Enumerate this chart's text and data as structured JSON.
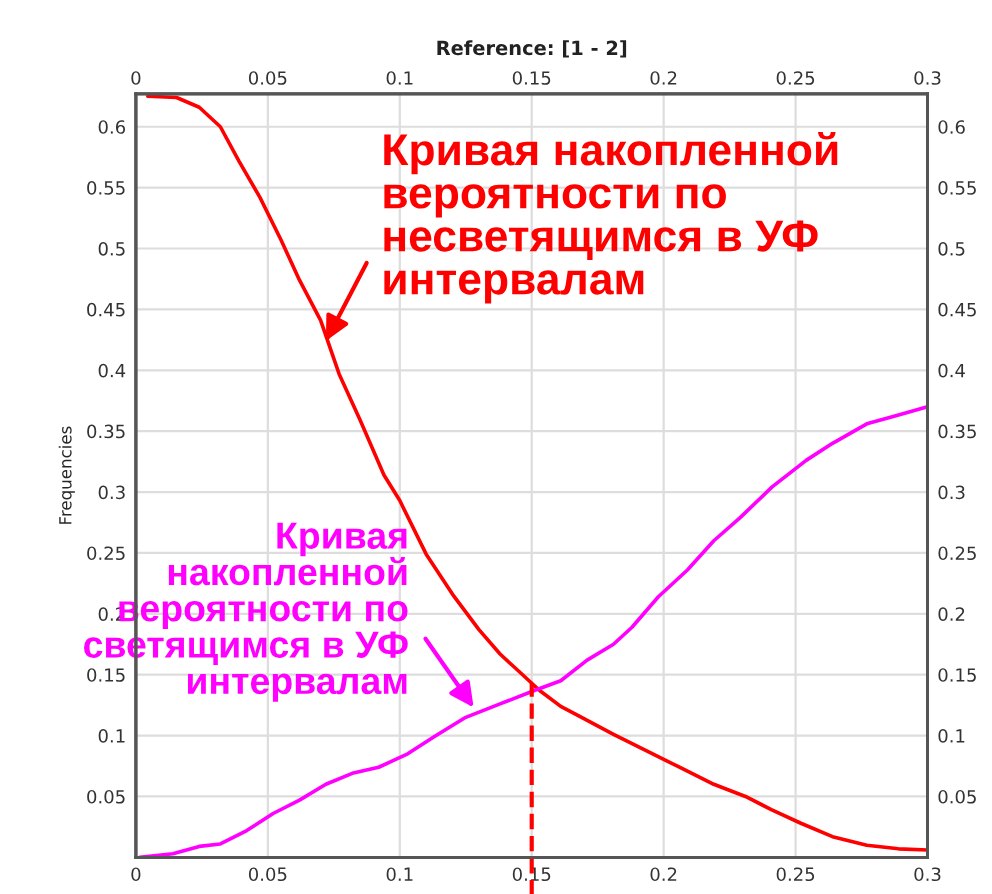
{
  "chart_data": {
    "type": "line",
    "title": "Reference: [1 - 2]",
    "ylabel": "Frequencies",
    "series": [
      {
        "color": "#ff0000",
        "x": [
          0.0045,
          0.0154,
          0.024,
          0.032,
          0.039,
          0.047,
          0.055,
          0.062,
          0.07,
          0.077,
          0.085,
          0.094,
          0.1,
          0.11,
          0.12,
          0.13,
          0.138,
          0.145,
          0.153,
          0.161,
          0.168,
          0.181,
          0.193,
          0.206,
          0.219,
          0.231,
          0.241,
          0.252,
          0.264,
          0.277,
          0.289,
          0.3
        ],
        "values": [
          0.625,
          0.624,
          0.616,
          0.6,
          0.572,
          0.542,
          0.507,
          0.474,
          0.441,
          0.397,
          0.359,
          0.314,
          0.293,
          0.249,
          0.216,
          0.187,
          0.167,
          0.153,
          0.137,
          0.124,
          0.116,
          0.101,
          0.088,
          0.074,
          0.06,
          0.05,
          0.039,
          0.028,
          0.017,
          0.01,
          0.007,
          0.006
        ]
      },
      {
        "color": "#ff00ff",
        "x": [
          0.0015,
          0.014,
          0.024,
          0.032,
          0.042,
          0.052,
          0.062,
          0.072,
          0.082,
          0.092,
          0.103,
          0.113,
          0.125,
          0.138,
          0.151,
          0.161,
          0.171,
          0.181,
          0.188,
          0.198,
          0.209,
          0.219,
          0.229,
          0.241,
          0.254,
          0.264,
          0.277,
          0.287,
          0.3
        ],
        "values": [
          0.0,
          0.003,
          0.009,
          0.011,
          0.022,
          0.036,
          0.047,
          0.06,
          0.069,
          0.074,
          0.085,
          0.099,
          0.115,
          0.126,
          0.137,
          0.145,
          0.162,
          0.175,
          0.189,
          0.214,
          0.236,
          0.26,
          0.279,
          0.304,
          0.326,
          0.34,
          0.356,
          0.362,
          0.37
        ]
      }
    ],
    "xlim": [
      0,
      0.3
    ],
    "xticks": [
      0,
      0.05,
      0.1,
      0.15,
      0.2,
      0.25,
      0.3
    ],
    "x2lim": [
      0,
      0.3
    ],
    "x2ticks": [
      0,
      0.05,
      0.1,
      0.15,
      0.2,
      0.25,
      0.3
    ],
    "ylim": [
      0,
      0.627
    ],
    "yticks": [
      0.05,
      0.1,
      0.15,
      0.2,
      0.25,
      0.3,
      0.35,
      0.4,
      0.45,
      0.5,
      0.55,
      0.6
    ],
    "y2lim": [
      0,
      0.627
    ],
    "y2ticks": [
      0.05,
      0.1,
      0.15,
      0.2,
      0.25,
      0.3,
      0.35,
      0.4,
      0.45,
      0.5,
      0.55,
      0.6
    ],
    "grid": true,
    "line_style": "solid",
    "ref_lines": [
      {
        "axis": "x",
        "value": 0.15,
        "color": "#ff0000",
        "line_style": "dashed"
      }
    ],
    "annotations": [
      {
        "text": "Кривая накопленной\nвероятности по\nнесветящимся в УФ\nинтервалам",
        "x": 0.072,
        "y": 0.424
      },
      {
        "text": "Кривая\nнакопленной\nвероятности по\nсветящимся в УФ\nинтервалам",
        "x": 0.128,
        "y": 0.123
      }
    ]
  }
}
